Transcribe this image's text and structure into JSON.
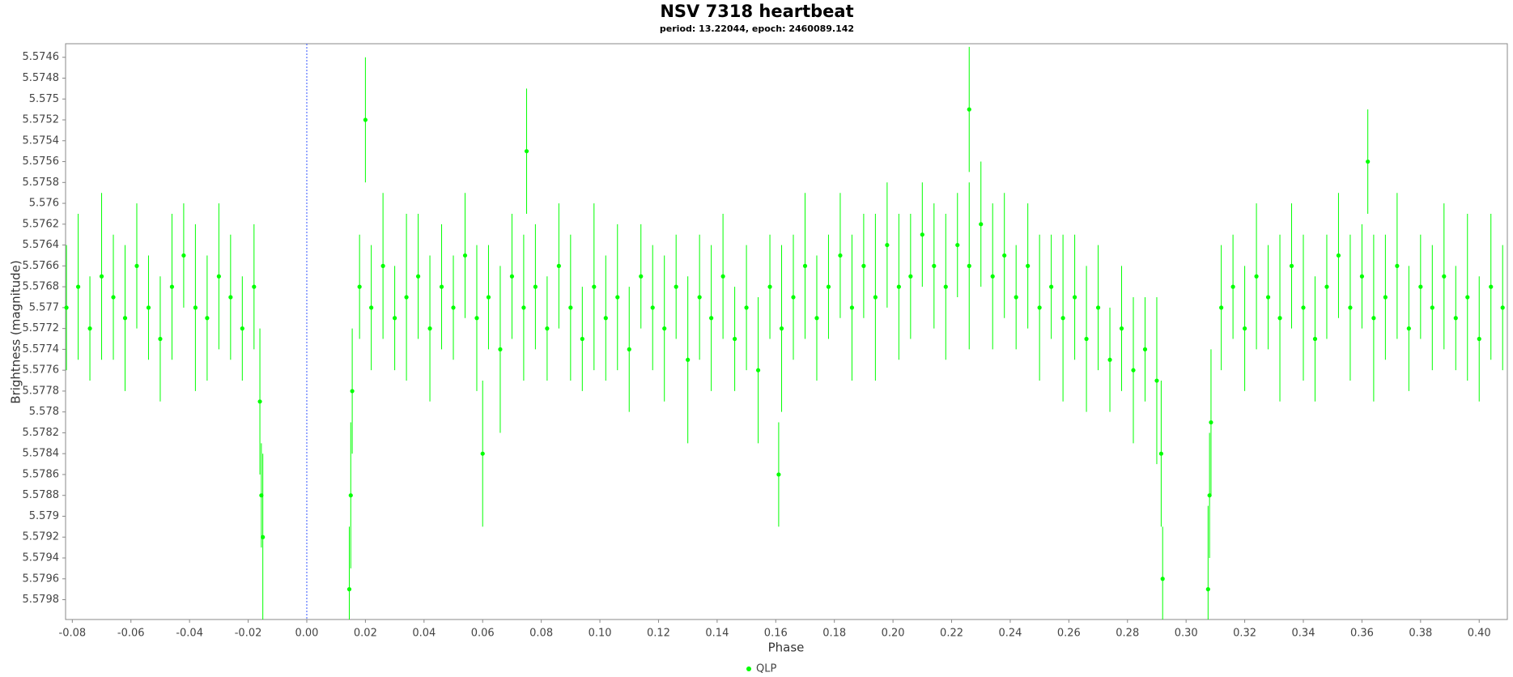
{
  "chart_data": {
    "type": "scatter",
    "title": "NSV 7318 heartbeat",
    "subtitle": "period: 13.22044, epoch: 2460089.142",
    "x_label": "Phase",
    "y_label": "Brightness (magnitude)",
    "xlim": [
      -0.0823,
      0.4096
    ],
    "ylim": [
      5.57999,
      5.57447
    ],
    "xticks": [
      -0.08,
      -0.06,
      -0.04,
      -0.02,
      {
        "value": 0,
        "label": "0.00"
      },
      0.02,
      0.04,
      0.06,
      0.08,
      {
        "value": 0.1,
        "label": "0.10"
      },
      0.12,
      0.14,
      0.16,
      0.18,
      {
        "value": 0.2,
        "label": "0.20"
      },
      0.22,
      0.24,
      0.26,
      0.28,
      {
        "value": 0.3,
        "label": "0.30"
      },
      0.32,
      0.34,
      0.36,
      0.38,
      {
        "value": 0.4,
        "label": "0.40"
      }
    ],
    "yticks": [
      5.5746,
      5.5748,
      5.575,
      5.5752,
      5.5754,
      5.5756,
      5.5758,
      5.576,
      5.5762,
      5.5764,
      5.5766,
      5.5768,
      5.577,
      5.5772,
      5.5774,
      5.5776,
      5.5778,
      5.578,
      5.5782,
      5.5784,
      5.5786,
      5.5788,
      5.579,
      5.5792,
      5.5794,
      5.5796,
      5.5798
    ],
    "yticks_labels_note_free": true,
    "vline": 0,
    "vline_color": "#3355ff",
    "grid": false,
    "legend": "bottom",
    "series": [
      {
        "name": "QLP",
        "color": "#00ff00",
        "x": [
          -0.082,
          -0.078,
          -0.074,
          -0.07,
          -0.066,
          -0.062,
          -0.058,
          -0.054,
          -0.05,
          -0.046,
          -0.042,
          -0.038,
          -0.034,
          -0.03,
          -0.026,
          -0.022,
          -0.018,
          -0.016,
          -0.0155,
          -0.015,
          0.0145,
          0.015,
          0.0155,
          0.018,
          0.022,
          0.026,
          0.03,
          0.034,
          0.038,
          0.042,
          0.046,
          0.05,
          0.054,
          0.058,
          0.062,
          0.066,
          0.07,
          0.074,
          0.078,
          0.082,
          0.086,
          0.09,
          0.094,
          0.098,
          0.102,
          0.106,
          0.11,
          0.114,
          0.118,
          0.122,
          0.126,
          0.13,
          0.134,
          0.138,
          0.142,
          0.146,
          0.15,
          0.154,
          0.158,
          0.162,
          0.166,
          0.17,
          0.174,
          0.178,
          0.182,
          0.186,
          0.19,
          0.194,
          0.198,
          0.202,
          0.206,
          0.21,
          0.214,
          0.218,
          0.222,
          0.226,
          0.23,
          0.234,
          0.238,
          0.242,
          0.246,
          0.25,
          0.254,
          0.258,
          0.262,
          0.266,
          0.27,
          0.274,
          0.278,
          0.282,
          0.286,
          0.29,
          0.02,
          0.06,
          0.075,
          0.161,
          0.226,
          0.2915,
          0.292,
          0.3075,
          0.308,
          0.3085,
          0.312,
          0.316,
          0.32,
          0.324,
          0.328,
          0.332,
          0.336,
          0.34,
          0.344,
          0.348,
          0.352,
          0.356,
          0.36,
          0.364,
          0.368,
          0.372,
          0.376,
          0.38,
          0.384,
          0.388,
          0.392,
          0.396,
          0.4,
          0.404,
          0.408,
          0.362
        ],
        "values": [
          5.577,
          5.5768,
          5.5772,
          5.5767,
          5.5769,
          5.5771,
          5.5766,
          5.577,
          5.5773,
          5.5768,
          5.5765,
          5.577,
          5.5771,
          5.5767,
          5.5769,
          5.5772,
          5.5768,
          5.5779,
          5.5788,
          5.5792,
          5.5797,
          5.5788,
          5.5778,
          5.5768,
          5.577,
          5.5766,
          5.5771,
          5.5769,
          5.5767,
          5.5772,
          5.5768,
          5.577,
          5.5765,
          5.5771,
          5.5769,
          5.5774,
          5.5767,
          5.577,
          5.5768,
          5.5772,
          5.5766,
          5.577,
          5.5773,
          5.5768,
          5.5771,
          5.5769,
          5.5774,
          5.5767,
          5.577,
          5.5772,
          5.5768,
          5.5775,
          5.5769,
          5.5771,
          5.5767,
          5.5773,
          5.577,
          5.5776,
          5.5768,
          5.5772,
          5.5769,
          5.5766,
          5.5771,
          5.5768,
          5.5765,
          5.577,
          5.5766,
          5.5769,
          5.5764,
          5.5768,
          5.5767,
          5.5763,
          5.5766,
          5.5768,
          5.5764,
          5.5766,
          5.5762,
          5.5767,
          5.5765,
          5.5769,
          5.5766,
          5.577,
          5.5768,
          5.5771,
          5.5769,
          5.5773,
          5.577,
          5.5775,
          5.5772,
          5.5776,
          5.5774,
          5.5777,
          5.5752,
          5.5784,
          5.5755,
          5.5786,
          5.5751,
          5.5784,
          5.5796,
          5.5797,
          5.5788,
          5.5781,
          5.577,
          5.5768,
          5.5772,
          5.5767,
          5.5769,
          5.5771,
          5.5766,
          5.577,
          5.5773,
          5.5768,
          5.5765,
          5.577,
          5.5767,
          5.5771,
          5.5769,
          5.5766,
          5.5772,
          5.5768,
          5.577,
          5.5767,
          5.5771,
          5.5769,
          5.5773,
          5.5768,
          5.577,
          5.5756
        ],
        "errors": [
          0.0006,
          0.0007,
          0.0005,
          0.0008,
          0.0006,
          0.0007,
          0.0006,
          0.0005,
          0.0006,
          0.0007,
          0.0005,
          0.0008,
          0.0006,
          0.0007,
          0.0006,
          0.0005,
          0.0006,
          0.0007,
          0.0005,
          0.0008,
          0.0006,
          0.0007,
          0.0006,
          0.0005,
          0.0006,
          0.0007,
          0.0005,
          0.0008,
          0.0006,
          0.0007,
          0.0006,
          0.0005,
          0.0006,
          0.0007,
          0.0005,
          0.0008,
          0.0006,
          0.0007,
          0.0006,
          0.0005,
          0.0006,
          0.0007,
          0.0005,
          0.0008,
          0.0006,
          0.0007,
          0.0006,
          0.0005,
          0.0006,
          0.0007,
          0.0005,
          0.0008,
          0.0006,
          0.0007,
          0.0006,
          0.0005,
          0.0006,
          0.0007,
          0.0005,
          0.0008,
          0.0006,
          0.0007,
          0.0006,
          0.0005,
          0.0006,
          0.0007,
          0.0005,
          0.0008,
          0.0006,
          0.0007,
          0.0006,
          0.0005,
          0.0006,
          0.0007,
          0.0005,
          0.0008,
          0.0006,
          0.0007,
          0.0006,
          0.0005,
          0.0006,
          0.0007,
          0.0005,
          0.0008,
          0.0006,
          0.0007,
          0.0006,
          0.0005,
          0.0006,
          0.0007,
          0.0005,
          0.0008,
          0.0006,
          0.0007,
          0.0006,
          0.0005,
          0.0006,
          0.0007,
          0.0005,
          0.0008,
          0.0006,
          0.0007,
          0.0006,
          0.0005,
          0.0006,
          0.0007,
          0.0005,
          0.0008,
          0.0006,
          0.0007,
          0.0006,
          0.0005,
          0.0006,
          0.0007,
          0.0005,
          0.0008,
          0.0006,
          0.0007,
          0.0006,
          0.0005,
          0.0006,
          0.0007,
          0.0005,
          0.0008,
          0.0006,
          0.0007,
          0.0006,
          0.0005
        ]
      }
    ]
  }
}
